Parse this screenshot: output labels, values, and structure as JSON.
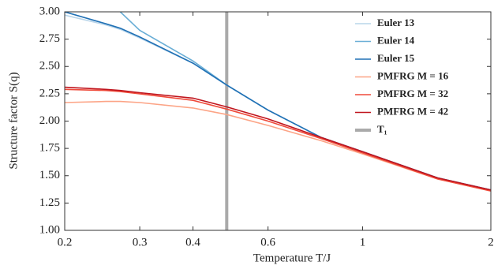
{
  "chart_data": {
    "type": "line",
    "x_label": "Temperature T/J",
    "y_label": "Structure factor S(q)",
    "log_x": true,
    "x": [
      0.2,
      0.25,
      0.27,
      0.3,
      0.4,
      0.48,
      0.6,
      0.8,
      1,
      1.5,
      2
    ],
    "series": [
      {
        "name": "Euler 13",
        "color": "#b9d5ea",
        "values": [
          2.97,
          2.88,
          2.84,
          2.76,
          2.53,
          2.33,
          2.1,
          1.85,
          1.72,
          1.48,
          1.37
        ]
      },
      {
        "name": "Euler 14",
        "color": "#6aaed6",
        "values": [
          null,
          null,
          3.0,
          2.83,
          2.55,
          2.33,
          2.1,
          1.85,
          1.72,
          1.48,
          1.37
        ]
      },
      {
        "name": "Euler 15",
        "color": "#2171b5",
        "values": [
          3.0,
          2.89,
          2.85,
          2.77,
          2.53,
          2.33,
          2.1,
          1.85,
          1.72,
          1.48,
          1.37
        ]
      },
      {
        "name": "PMFRG M = 16",
        "color": "#fca486",
        "values": [
          2.17,
          2.18,
          2.18,
          2.17,
          2.12,
          2.06,
          1.96,
          1.82,
          1.7,
          1.47,
          1.36
        ]
      },
      {
        "name": "PMFRG M = 32",
        "color": "#ef4a3a",
        "values": [
          2.29,
          2.28,
          2.27,
          2.25,
          2.19,
          2.11,
          2.0,
          1.84,
          1.71,
          1.47,
          1.36
        ]
      },
      {
        "name": "PMFRG M = 42",
        "color": "#c0141d",
        "values": [
          2.31,
          2.29,
          2.28,
          2.26,
          2.21,
          2.13,
          2.02,
          1.85,
          1.72,
          1.48,
          1.37
        ]
      }
    ],
    "vline": {
      "name": "T₁",
      "x": 0.48,
      "color": "#aaaaaa"
    },
    "xlim": [
      0.2,
      2
    ],
    "xticks": [
      0.2,
      0.3,
      0.4,
      0.6,
      1,
      2
    ],
    "ylim": [
      1,
      3
    ],
    "yticks": [
      {
        "value": 1,
        "label": "1.00"
      },
      1.25,
      {
        "value": 1.5,
        "label": "1.50"
      },
      1.75,
      {
        "value": 2,
        "label": "2.00"
      },
      2.25,
      {
        "value": 2.5,
        "label": "2.50"
      },
      2.75,
      {
        "value": 3,
        "label": "3.00"
      }
    ],
    "legend": "upper right"
  }
}
